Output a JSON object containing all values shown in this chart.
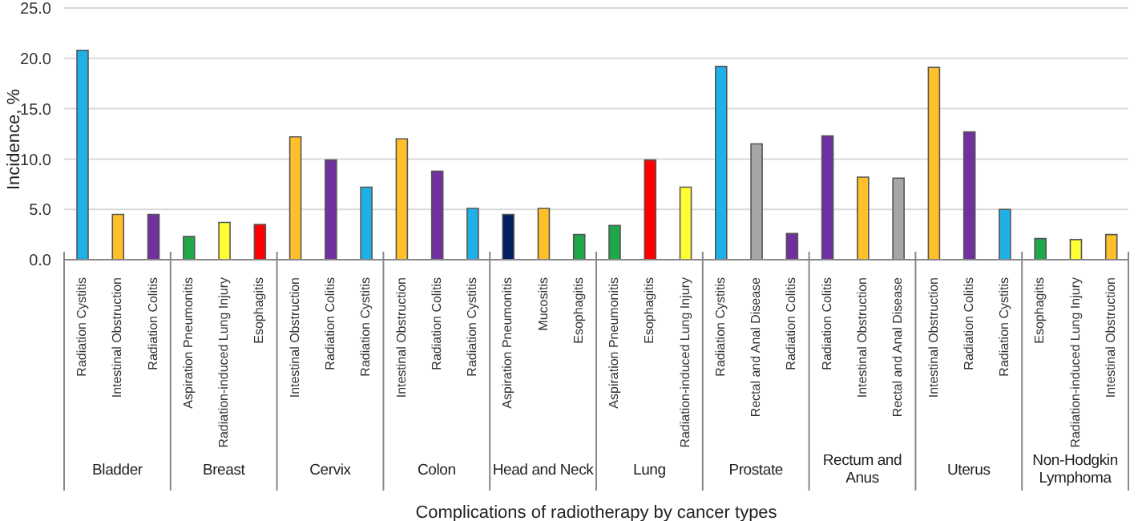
{
  "chart_data": {
    "type": "bar",
    "xlabel": "Complications of radiotherapy by cancer types",
    "ylabel": "Incidence, %",
    "categories": [
      "Radiation Cystitis",
      "Intestinal Obstruction",
      "Radiation Colitis",
      "Aspiration Pneumonitis",
      "Radiation-induced Lung Injury",
      "Esophagitis",
      "Intestinal Obstruction",
      "Radiation Colitis",
      "Radiation Cystitis",
      "Intestinal Obstruction",
      "Radiation Colitis",
      "Radiation Cystitis",
      "Aspiration Pneumonitis",
      "Mucositis",
      "Esophagitis",
      "Aspiration Pneumonitis",
      "Esophagitis",
      "Radiation-induced Lung Injury",
      "Radiation Cystitis",
      "Rectal and Anal Disease",
      "Radiation Colitis",
      "Radiation Colitis",
      "Intestinal Obstruction",
      "Rectal and Anal Disease",
      "Intestinal Obstruction",
      "Radiation Colitis",
      "Radiation Cystitis",
      "Esophagitis",
      "Radiation-induced Lung Injury",
      "Intestinal Obstruction"
    ],
    "values": [
      20.8,
      4.5,
      4.5,
      2.3,
      3.7,
      3.5,
      12.2,
      9.9,
      7.2,
      12.0,
      8.8,
      5.1,
      4.5,
      5.1,
      2.5,
      3.4,
      9.9,
      7.2,
      19.2,
      11.5,
      2.6,
      12.3,
      8.2,
      8.1,
      19.1,
      12.7,
      5.0,
      2.1,
      2.0,
      2.5
    ],
    "colors": [
      "#1fb0e8",
      "#ffc02a",
      "#7030a0",
      "#1fa84a",
      "#ffff33",
      "#ff0000",
      "#ffc02a",
      "#7030a0",
      "#1fb0e8",
      "#ffc02a",
      "#7030a0",
      "#1fb0e8",
      "#002060",
      "#ffc02a",
      "#1fa84a",
      "#1fa84a",
      "#ff0000",
      "#ffff33",
      "#1fb0e8",
      "#a6a6a6",
      "#7030a0",
      "#7030a0",
      "#ffc02a",
      "#a6a6a6",
      "#ffc02a",
      "#7030a0",
      "#1fb0e8",
      "#1fa84a",
      "#ffff33",
      "#ffc02a"
    ],
    "annotations": [
      "Bladder",
      "Breast",
      "Cervix",
      "Colon",
      "Head and Neck",
      "Lung",
      "Prostate",
      "Rectum and Anus",
      "Uterus",
      "Non-Hodgkin Lymphoma"
    ],
    "ylim": [
      0,
      25
    ],
    "yticks": [
      {
        "value": 0,
        "label": "0.0"
      },
      {
        "value": 5,
        "label": "5.0"
      },
      {
        "value": 10,
        "label": "10.0"
      },
      {
        "value": 15,
        "label": "15.0"
      },
      {
        "value": 20,
        "label": "20.0"
      },
      {
        "value": 25,
        "label": "25.0"
      }
    ],
    "grid": "y",
    "legend": false
  }
}
